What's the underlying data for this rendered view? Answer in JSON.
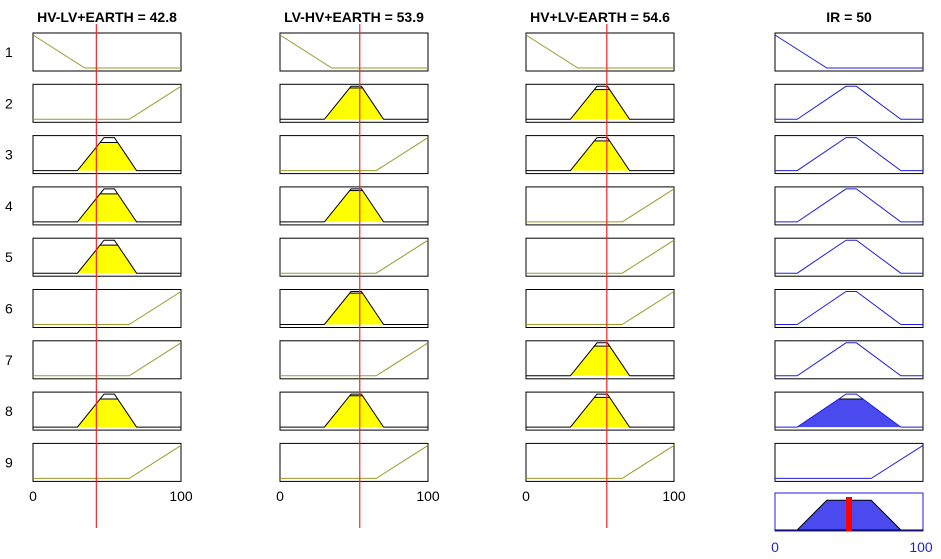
{
  "chart_data": {
    "type": "fuzzy-rule-viewer",
    "input_range": [
      0,
      100
    ],
    "output_range": [
      0,
      100
    ],
    "rows": [
      "1",
      "2",
      "3",
      "4",
      "5",
      "6",
      "7",
      "8",
      "9"
    ],
    "inputs": [
      {
        "name": "HV-LV+EARTH",
        "value": 42.8,
        "title": "HV-LV+EARTH = 42.8",
        "mfs": [
          "low",
          "high",
          "mid",
          "mid",
          "mid",
          "high",
          "high",
          "mid",
          "high"
        ],
        "fire": [
          0,
          0,
          0.85,
          0.85,
          0.85,
          0,
          0,
          0.85,
          0
        ]
      },
      {
        "name": "LV-HV+EARTH",
        "value": 53.9,
        "title": "LV-HV+EARTH = 53.9",
        "mfs": [
          "low",
          "mid",
          "high",
          "mid",
          "high",
          "mid",
          "high",
          "mid",
          "high"
        ],
        "fire": [
          0,
          0.95,
          0,
          0.95,
          0,
          0.95,
          0,
          0.95,
          0
        ]
      },
      {
        "name": "HV+LV-EARTH",
        "value": 54.6,
        "title": "HV+LV-EARTH = 54.6",
        "mfs": [
          "low",
          "mid",
          "mid",
          "high",
          "high",
          "high",
          "mid",
          "mid",
          "high"
        ],
        "fire": [
          0,
          0.9,
          0.9,
          0,
          0,
          0,
          0.9,
          0.9,
          0
        ]
      }
    ],
    "output": {
      "name": "IR",
      "value": 50,
      "title": "IR = 50",
      "mfs": [
        "low",
        "mid",
        "mid",
        "mid",
        "mid",
        "mid",
        "mid",
        "mid",
        "high"
      ],
      "fire": [
        0,
        0,
        0,
        0,
        0,
        0,
        0,
        0.85,
        0
      ]
    },
    "membership_functions": {
      "low": [
        0,
        0,
        0,
        35
      ],
      "mid": [
        30,
        48,
        55,
        70
      ],
      "high": [
        65,
        100,
        100,
        100
      ]
    },
    "output_membership_functions": {
      "low": [
        0,
        0,
        0,
        35
      ],
      "mid": [
        15,
        48,
        55,
        85
      ],
      "high": [
        65,
        100,
        100,
        100
      ]
    },
    "aggregate": [
      [
        0,
        0
      ],
      [
        15,
        0
      ],
      [
        35,
        0.85
      ],
      [
        65,
        0.85
      ],
      [
        85,
        0
      ],
      [
        100,
        0
      ]
    ],
    "ticks": {
      "min": "0",
      "max": "100"
    },
    "colors": {
      "input_line": "#9a9a2a",
      "input_fill": "#ffff00",
      "output_line": "#1f1fe0",
      "output_fill": "#4a4aee",
      "indicator": "#ff2020",
      "defuzz_bar": "#ff0000"
    }
  }
}
